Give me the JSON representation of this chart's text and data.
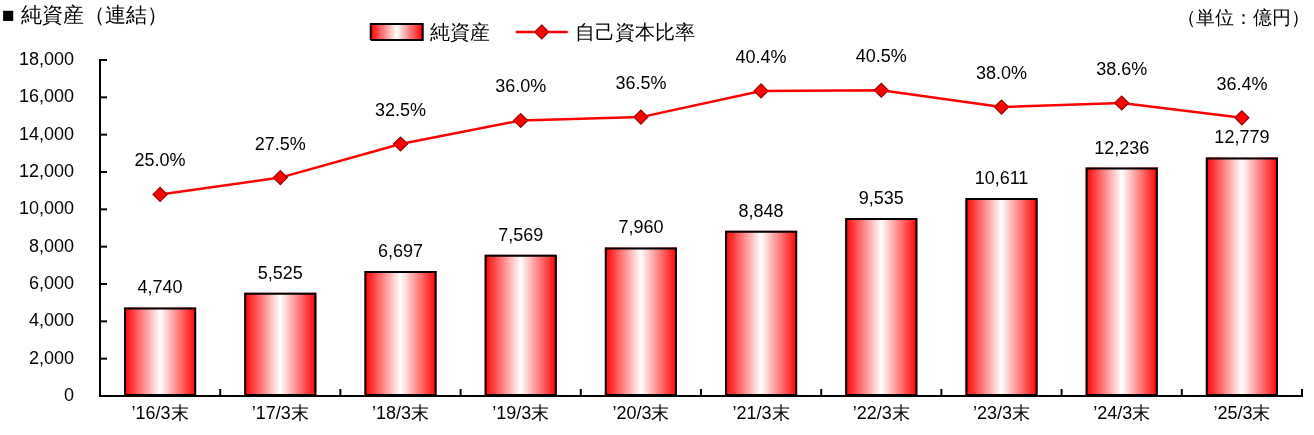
{
  "chart_data": {
    "type": "bar",
    "title": "■ 純資産（連結）",
    "annotations": [
      "（単位：億円）"
    ],
    "categories": [
      "’16/3末",
      "’17/3末",
      "’18/3末",
      "’19/3末",
      "’20/3末",
      "’21/3末",
      "’22/3末",
      "’23/3末",
      "’24/3末",
      "’25/3末"
    ],
    "series": [
      {
        "name": "純資産",
        "type": "bar",
        "color": "#ff0000",
        "values": [
          4740,
          5525,
          6697,
          7569,
          7960,
          8848,
          9535,
          10611,
          12236,
          12779
        ],
        "value_labels": [
          "4,740",
          "5,525",
          "6,697",
          "7,569",
          "7,960",
          "8,848",
          "9,535",
          "10,611",
          "12,236",
          "12,779"
        ]
      },
      {
        "name": "自己資本比率",
        "type": "line",
        "axis": "y2",
        "color": "#ff0000",
        "values": [
          25.0,
          27.5,
          32.5,
          36.0,
          36.5,
          40.4,
          40.5,
          38.0,
          38.6,
          36.4
        ],
        "value_labels": [
          "25.0%",
          "27.5%",
          "32.5%",
          "36.0%",
          "36.5%",
          "40.4%",
          "40.5%",
          "38.0%",
          "38.6%",
          "36.4%"
        ]
      }
    ],
    "ylim": [
      0,
      18000
    ],
    "yticks": [
      0,
      {
        "value": 2000,
        "label": "2,000"
      },
      {
        "value": 4000,
        "label": "4,000"
      },
      {
        "value": 6000,
        "label": "6,000"
      },
      {
        "value": 8000,
        "label": "8,000"
      },
      {
        "value": 10000,
        "label": "10,000"
      },
      {
        "value": 12000,
        "label": "12,000"
      },
      {
        "value": 14000,
        "label": "14,000"
      },
      {
        "value": 16000,
        "label": "16,000"
      },
      {
        "value": 18000,
        "label": "18,000"
      }
    ],
    "y2lim": [
      -5,
      45
    ],
    "legend": "top",
    "marker": "diamond",
    "line_style": "solid"
  }
}
